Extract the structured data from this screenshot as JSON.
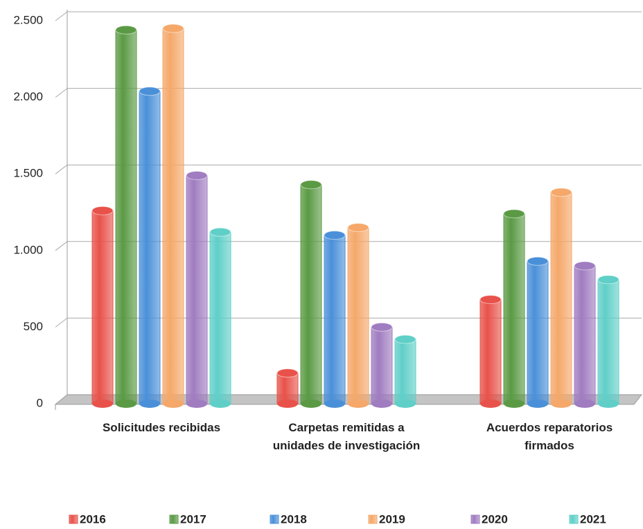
{
  "chart_data": {
    "type": "bar",
    "categories": [
      "Solicitudes recibidas",
      "Carpetas remitidas a unidades de investigación",
      "Acuerdos reparatorios firmados"
    ],
    "series": [
      {
        "name": "2016",
        "color": "#e8524a",
        "values": [
          1260,
          200,
          680
        ]
      },
      {
        "name": "2017",
        "color": "#5a9a44",
        "values": [
          2440,
          1430,
          1240
        ]
      },
      {
        "name": "2018",
        "color": "#4a90d9",
        "values": [
          2040,
          1100,
          930
        ]
      },
      {
        "name": "2019",
        "color": "#f5a86a",
        "values": [
          2450,
          1150,
          1380
        ]
      },
      {
        "name": "2020",
        "color": "#a07cc0",
        "values": [
          1490,
          500,
          900
        ]
      },
      {
        "name": "2021",
        "color": "#5fcfc8",
        "values": [
          1120,
          420,
          810
        ]
      }
    ],
    "ylim": [
      0,
      2500
    ],
    "yticks": [
      0,
      500,
      {
        "value": 1000,
        "label": "1.000"
      },
      {
        "value": 1500,
        "label": "1.500"
      },
      {
        "value": 2000,
        "label": "2.000"
      },
      {
        "value": 2500,
        "label": "2.500"
      }
    ],
    "grid": true,
    "legend": "bottom"
  }
}
